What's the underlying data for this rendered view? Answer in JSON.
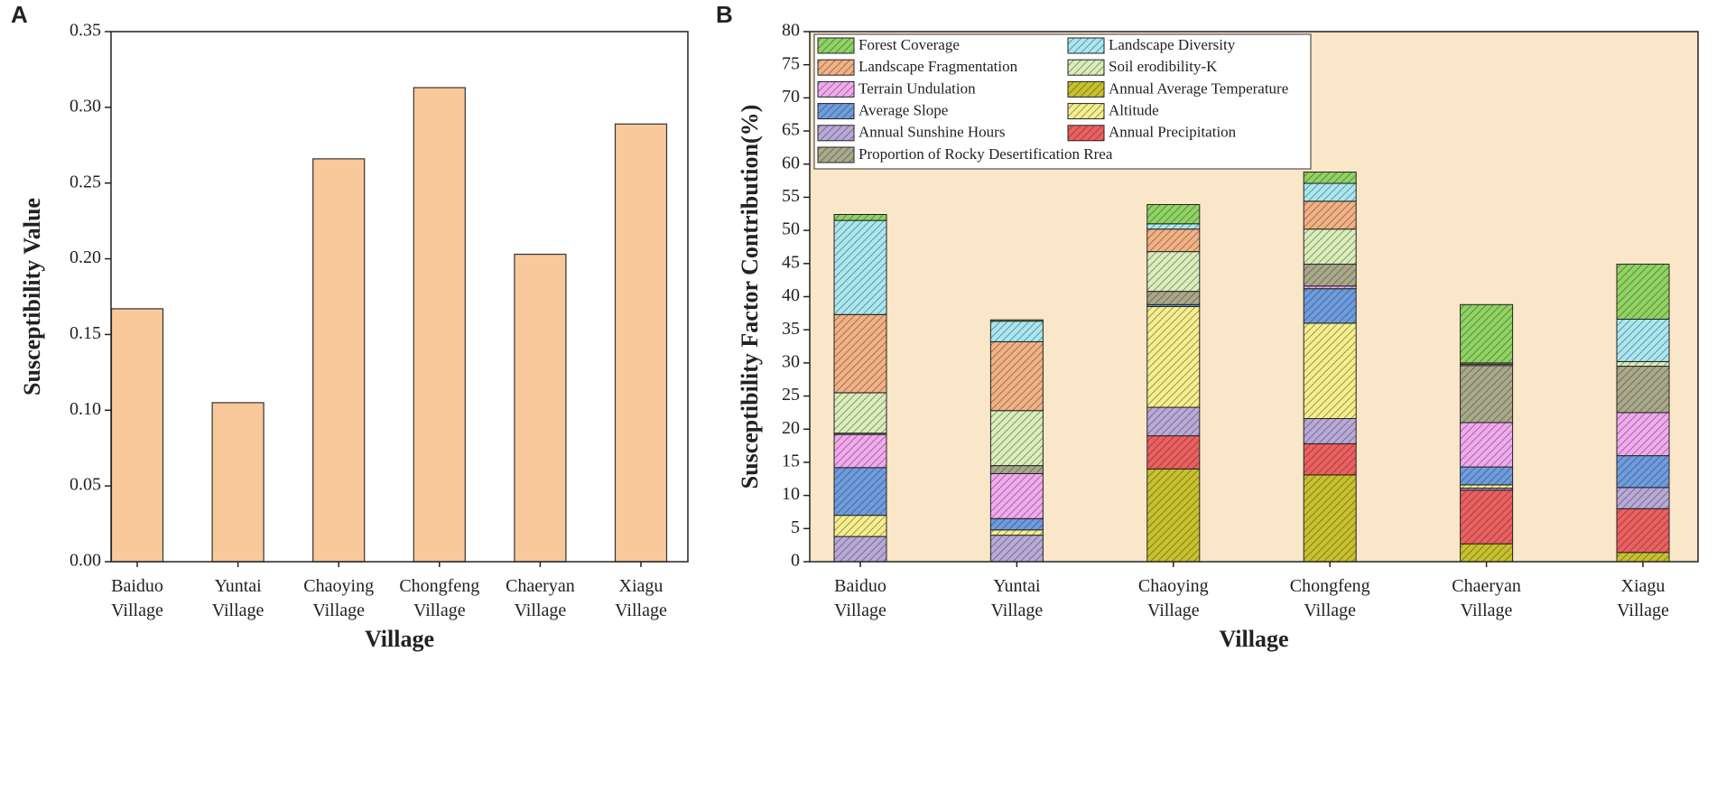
{
  "chart_data": [
    {
      "type": "bar",
      "label": "A",
      "ylabel": "Susceptibility Value",
      "xlabel": "Village",
      "categories": [
        "Baiduo Village",
        "Yuntai Village",
        "Chaoying Village",
        "Chongfeng Village",
        "Chaeryan Village",
        "Xiagu Village"
      ],
      "values": [
        0.167,
        0.105,
        0.266,
        0.313,
        0.203,
        0.289
      ],
      "color": "#f9c89b",
      "ylim": [
        0,
        0.35
      ],
      "yticks": [
        {
          "value": 0,
          "label": "0.00"
        },
        0.05,
        {
          "value": 0.1,
          "label": "0.10"
        },
        0.15,
        {
          "value": 0.2,
          "label": "0.20"
        },
        0.25,
        {
          "value": 0.3,
          "label": "0.30"
        },
        0.35
      ]
    },
    {
      "type": "stacked_bar",
      "label": "B",
      "ylabel": "Susceptibility Factor Contribution(%)",
      "xlabel": "Village",
      "categories": [
        "Baiduo Village",
        "Yuntai Village",
        "Chaoying Village",
        "Chongfeng Village",
        "Chaeryan Village",
        "Xiagu Village"
      ],
      "ylim": [
        0,
        80
      ],
      "yticks": [
        0,
        5,
        10,
        15,
        20,
        25,
        30,
        35,
        40,
        45,
        50,
        55,
        60,
        65,
        70,
        75,
        80
      ],
      "legend": "upper left",
      "background": "#fae6c8",
      "series": [
        {
          "name": "Annual Average Temperature",
          "color": "#c9c12c",
          "values": [
            0,
            0,
            14,
            13.1,
            2.7,
            1.4
          ]
        },
        {
          "name": "Annual Precipitation",
          "color": "#ee5f5f",
          "values": [
            0,
            0,
            5,
            4.7,
            8.1,
            6.6
          ]
        },
        {
          "name": "Annual Sunshine Hours",
          "color": "#b9a9d9",
          "values": [
            3.8,
            4,
            4.3,
            3.8,
            0.3,
            3.2
          ]
        },
        {
          "name": "Altitude",
          "color": "#f6ef8c",
          "values": [
            3.2,
            0.8,
            15.2,
            14.4,
            0.5,
            0
          ]
        },
        {
          "name": "Average Slope",
          "color": "#6e9ce0",
          "values": [
            7.2,
            1.7,
            0.3,
            5.2,
            2.7,
            4.8
          ]
        },
        {
          "name": "Terrain Undulation",
          "color": "#f3a9ef",
          "values": [
            5,
            6.8,
            0,
            0.4,
            6.7,
            6.5
          ]
        },
        {
          "name": "Proportion of Rocky Desertification Rrea",
          "color": "#a9a98a",
          "values": [
            0.2,
            1.2,
            2,
            3.3,
            8.6,
            7
          ]
        },
        {
          "name": "Soil erodibility-K",
          "color": "#d9eeb9",
          "values": [
            6.1,
            8.3,
            6,
            5.3,
            0.2,
            0.7
          ]
        },
        {
          "name": "Landscape Fragmentation",
          "color": "#f4b284",
          "values": [
            11.8,
            10.4,
            3.4,
            4.2,
            0.2,
            0
          ]
        },
        {
          "name": "Landscape Diversity",
          "color": "#a9e8f1",
          "values": [
            14.2,
            3.1,
            0.8,
            2.7,
            0,
            6.4
          ]
        },
        {
          "name": "Forest Coverage",
          "color": "#8fd461",
          "values": [
            0.9,
            0.2,
            2.9,
            1.7,
            8.8,
            8.3
          ]
        }
      ]
    }
  ]
}
